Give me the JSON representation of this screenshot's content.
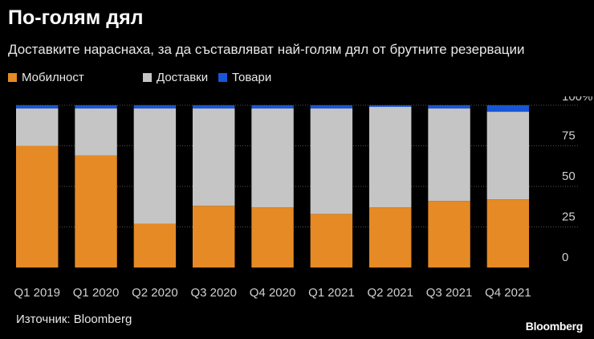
{
  "header": {
    "title": "По-голям дял",
    "subtitle": "Доставките нараснаха, за да съставляват най-голям дял от брутните резервации"
  },
  "footer": {
    "source": "Източник: Bloomberg",
    "brand": "Bloomberg"
  },
  "colors": {
    "background": "#000000",
    "mobility": "#e58a24",
    "delivery": "#c5c5c5",
    "goods": "#1856d8",
    "gridline": "#555555"
  },
  "chart_data": {
    "type": "bar",
    "stacked": true,
    "categories": [
      "Q1 2019",
      "Q1 2020",
      "Q2 2020",
      "Q3 2020",
      "Q4 2020",
      "Q1 2021",
      "Q2 2021",
      "Q3 2021",
      "Q4 2021"
    ],
    "series": [
      {
        "name": "Мобилност",
        "color": "#e58a24",
        "values": [
          75,
          69,
          27,
          38,
          37,
          33,
          37,
          41,
          42
        ]
      },
      {
        "name": "Доставки",
        "color": "#c5c5c5",
        "values": [
          23,
          29,
          71,
          60,
          61,
          65,
          62,
          57,
          54
        ]
      },
      {
        "name": "Товари",
        "color": "#1856d8",
        "values": [
          2,
          2,
          2,
          2,
          2,
          2,
          1,
          2,
          4
        ]
      }
    ],
    "ylim": [
      0,
      100
    ],
    "yticks": [
      0,
      25,
      50,
      75,
      100
    ],
    "ytick_labels": [
      "0",
      "25",
      "50",
      "75",
      "100%"
    ],
    "yaxis_position": "right",
    "grid": true,
    "legend_position": "top-left",
    "xlabel": "",
    "ylabel": ""
  }
}
